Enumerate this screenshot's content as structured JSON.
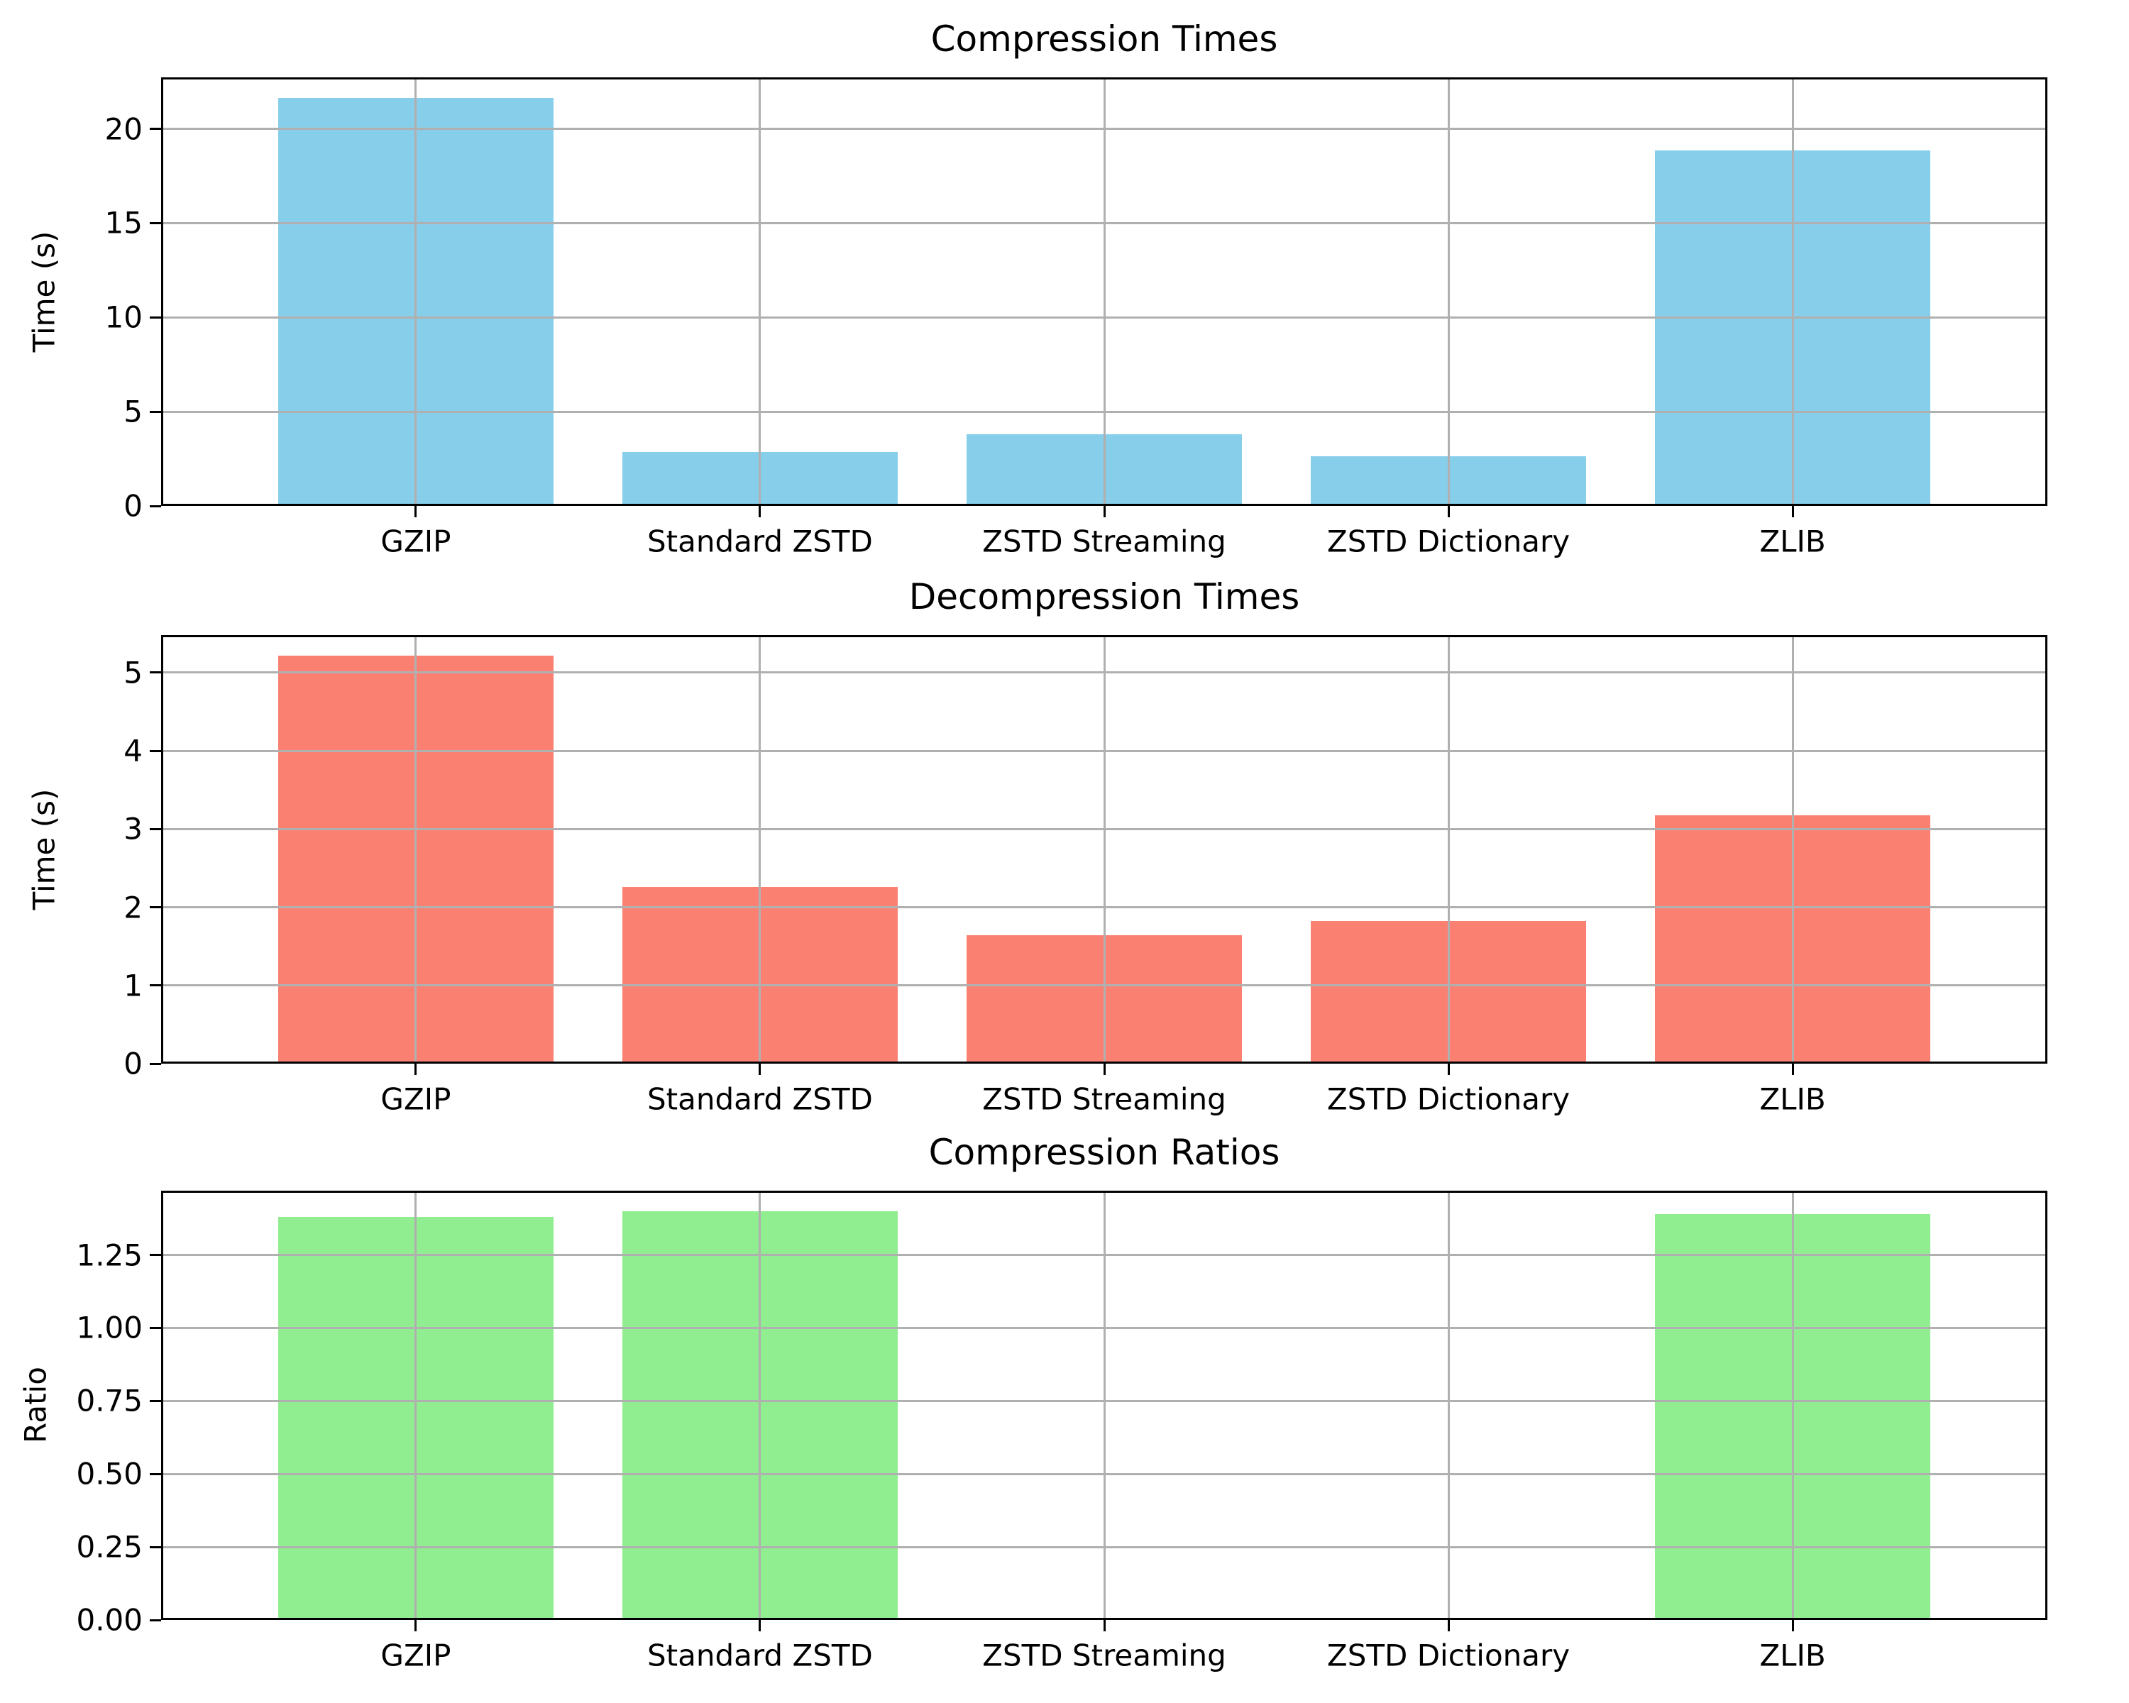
{
  "figure": {
    "background": "#ffffff",
    "grid_color": "#b0b0b0",
    "spine_color": "#000000",
    "text_color": "#000000"
  },
  "categories": [
    "GZIP",
    "Standard ZSTD",
    "ZSTD Streaming",
    "ZSTD Dictionary",
    "ZLIB"
  ],
  "chart_data": [
    {
      "type": "bar",
      "title": "Compression Times",
      "xlabel": "",
      "ylabel": "Time (s)",
      "categories": [
        "GZIP",
        "Standard ZSTD",
        "ZSTD Streaming",
        "ZSTD Dictionary",
        "ZLIB"
      ],
      "values": [
        21.65,
        2.85,
        3.8,
        2.62,
        18.85
      ],
      "bar_color": "#87CEEB",
      "yticks": [
        0,
        5,
        10,
        15,
        20
      ],
      "ytick_labels": [
        "0",
        "5",
        "10",
        "15",
        "20"
      ],
      "ylim": [
        0,
        22.73
      ],
      "xlim_pad_units": 0.24,
      "bar_width_units": 0.8,
      "grid": true,
      "grid_above_bars": true,
      "legend": "none"
    },
    {
      "type": "bar",
      "title": "Decompression Times",
      "xlabel": "",
      "ylabel": "Time (s)",
      "categories": [
        "GZIP",
        "Standard ZSTD",
        "ZSTD Streaming",
        "ZSTD Dictionary",
        "ZLIB"
      ],
      "values": [
        5.22,
        2.26,
        1.64,
        1.82,
        3.18
      ],
      "bar_color": "#FA8072",
      "yticks": [
        0,
        1,
        2,
        3,
        4,
        5
      ],
      "ytick_labels": [
        "0",
        "1",
        "2",
        "3",
        "4",
        "5"
      ],
      "ylim": [
        0,
        5.48
      ],
      "xlim_pad_units": 0.24,
      "bar_width_units": 0.8,
      "grid": true,
      "grid_above_bars": true,
      "legend": "none"
    },
    {
      "type": "bar",
      "title": "Compression Ratios",
      "xlabel": "",
      "ylabel": "Ratio",
      "categories": [
        "GZIP",
        "Standard ZSTD",
        "ZSTD Streaming",
        "ZSTD Dictionary",
        "ZLIB"
      ],
      "values": [
        1.38,
        1.4,
        0.0,
        0.0,
        1.39
      ],
      "bar_color": "#90EE90",
      "yticks": [
        0,
        0.25,
        0.5,
        0.75,
        1.0,
        1.25
      ],
      "ytick_labels": [
        "0.00",
        "0.25",
        "0.50",
        "0.75",
        "1.00",
        "1.25"
      ],
      "ylim": [
        0,
        1.47
      ],
      "xlim_pad_units": 0.24,
      "bar_width_units": 0.8,
      "grid": true,
      "grid_above_bars": true,
      "legend": "none"
    }
  ]
}
